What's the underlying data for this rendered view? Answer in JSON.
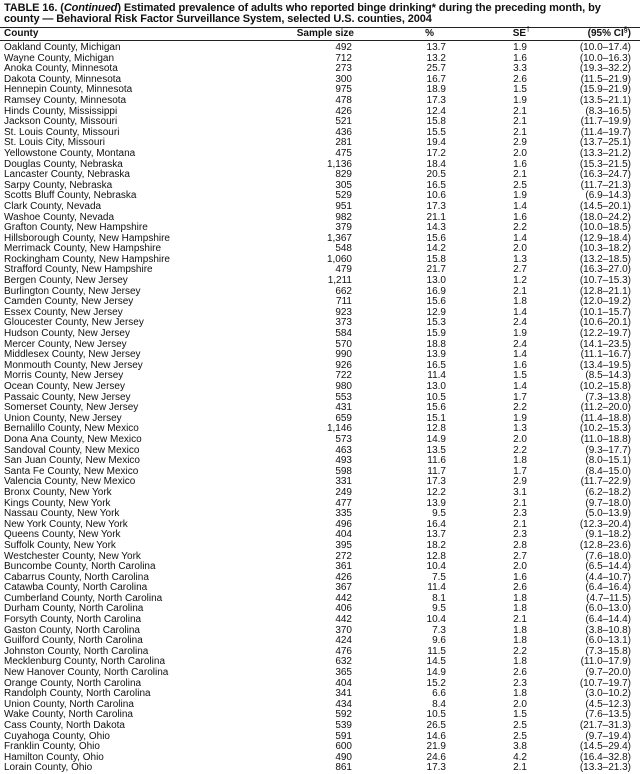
{
  "title": {
    "prefix": "TABLE 16. (",
    "continued": "Continued",
    "rest": ") Estimated prevalence of adults who reported binge drinking* during the preceding month, by county — Behavioral Risk Factor Surveillance System, selected U.S. counties, 2004"
  },
  "columns": {
    "county": "County",
    "sample_size": "Sample size",
    "percent": "%",
    "se": "SE",
    "se_mark": "†",
    "ci": "(95% CI",
    "ci_mark": "§",
    "ci_close": ")"
  },
  "rows": [
    [
      "Oakland County, Michigan",
      "492",
      "13.7",
      "1.9",
      "(10.0–17.4)"
    ],
    [
      "Wayne County, Michigan",
      "712",
      "13.2",
      "1.6",
      "(10.0–16.3)"
    ],
    [
      "Anoka County, Minnesota",
      "273",
      "25.7",
      "3.3",
      "(19.3–32.2)"
    ],
    [
      "Dakota County, Minnesota",
      "300",
      "16.7",
      "2.6",
      "(11.5–21.9)"
    ],
    [
      "Hennepin County, Minnesota",
      "975",
      "18.9",
      "1.5",
      "(15.9–21.9)"
    ],
    [
      "Ramsey County, Minnesota",
      "478",
      "17.3",
      "1.9",
      "(13.5–21.1)"
    ],
    [
      "Hinds County, Mississippi",
      "426",
      "12.4",
      "2.1",
      "(8.3–16.5)"
    ],
    [
      "Jackson County, Missouri",
      "521",
      "15.8",
      "2.1",
      "(11.7–19.9)"
    ],
    [
      "St. Louis County, Missouri",
      "436",
      "15.5",
      "2.1",
      "(11.4–19.7)"
    ],
    [
      "St. Louis City, Missouri",
      "281",
      "19.4",
      "2.9",
      "(13.7–25.1)"
    ],
    [
      "Yellowstone County, Montana",
      "475",
      "17.2",
      "2.0",
      "(13.3–21.2)"
    ],
    [
      "Douglas County, Nebraska",
      "1,136",
      "18.4",
      "1.6",
      "(15.3–21.5)"
    ],
    [
      "Lancaster County, Nebraska",
      "829",
      "20.5",
      "2.1",
      "(16.3–24.7)"
    ],
    [
      "Sarpy County, Nebraska",
      "305",
      "16.5",
      "2.5",
      "(11.7–21.3)"
    ],
    [
      "Scotts Bluff County, Nebraska",
      "529",
      "10.6",
      "1.9",
      "(6.9–14.3)"
    ],
    [
      "Clark County, Nevada",
      "951",
      "17.3",
      "1.4",
      "(14.5–20.1)"
    ],
    [
      "Washoe County, Nevada",
      "982",
      "21.1",
      "1.6",
      "(18.0–24.2)"
    ],
    [
      "Grafton County, New Hampshire",
      "379",
      "14.3",
      "2.2",
      "(10.0–18.5)"
    ],
    [
      "Hillsborough County, New Hampshire",
      "1,367",
      "15.6",
      "1.4",
      "(12.9–18.4)"
    ],
    [
      "Merrimack County, New Hampshire",
      "548",
      "14.2",
      "2.0",
      "(10.3–18.2)"
    ],
    [
      "Rockingham County, New Hampshire",
      "1,060",
      "15.8",
      "1.3",
      "(13.2–18.5)"
    ],
    [
      "Strafford County, New Hampshire",
      "479",
      "21.7",
      "2.7",
      "(16.3–27.0)"
    ],
    [
      "Bergen County, New Jersey",
      "1,211",
      "13.0",
      "1.2",
      "(10.7–15.3)"
    ],
    [
      "Burlington County, New Jersey",
      "662",
      "16.9",
      "2.1",
      "(12.8–21.1)"
    ],
    [
      "Camden County, New Jersey",
      "711",
      "15.6",
      "1.8",
      "(12.0–19.2)"
    ],
    [
      "Essex County, New Jersey",
      "923",
      "12.9",
      "1.4",
      "(10.1–15.7)"
    ],
    [
      "Gloucester County, New Jersey",
      "373",
      "15.3",
      "2.4",
      "(10.6–20.1)"
    ],
    [
      "Hudson County, New Jersey",
      "584",
      "15.9",
      "1.9",
      "(12.2–19.7)"
    ],
    [
      "Mercer County, New Jersey",
      "570",
      "18.8",
      "2.4",
      "(14.1–23.5)"
    ],
    [
      "Middlesex County, New Jersey",
      "990",
      "13.9",
      "1.4",
      "(11.1–16.7)"
    ],
    [
      "Monmouth County, New Jersey",
      "926",
      "16.5",
      "1.6",
      "(13.4–19.5)"
    ],
    [
      "Morris County, New Jersey",
      "722",
      "11.4",
      "1.5",
      "(8.5–14.3)"
    ],
    [
      "Ocean County, New Jersey",
      "980",
      "13.0",
      "1.4",
      "(10.2–15.8)"
    ],
    [
      "Passaic County, New Jersey",
      "553",
      "10.5",
      "1.7",
      "(7.3–13.8)"
    ],
    [
      "Somerset County, New Jersey",
      "431",
      "15.6",
      "2.2",
      "(11.2–20.0)"
    ],
    [
      "Union County, New Jersey",
      "659",
      "15.1",
      "1.9",
      "(11.4–18.8)"
    ],
    [
      "Bernalillo County, New Mexico",
      "1,146",
      "12.8",
      "1.3",
      "(10.2–15.3)"
    ],
    [
      "Dona Ana County, New Mexico",
      "573",
      "14.9",
      "2.0",
      "(11.0–18.8)"
    ],
    [
      "Sandoval County, New Mexico",
      "463",
      "13.5",
      "2.2",
      "(9.3–17.7)"
    ],
    [
      "San Juan County, New Mexico",
      "493",
      "11.6",
      "1.8",
      "(8.0–15.1)"
    ],
    [
      "Santa Fe County, New Mexico",
      "598",
      "11.7",
      "1.7",
      "(8.4–15.0)"
    ],
    [
      "Valencia County, New Mexico",
      "331",
      "17.3",
      "2.9",
      "(11.7–22.9)"
    ],
    [
      "Bronx County, New York",
      "249",
      "12.2",
      "3.1",
      "(6.2–18.2)"
    ],
    [
      "Kings County, New York",
      "477",
      "13.9",
      "2.1",
      "(9.7–18.0)"
    ],
    [
      "Nassau County, New York",
      "335",
      "9.5",
      "2.3",
      "(5.0–13.9)"
    ],
    [
      "New York County, New York",
      "496",
      "16.4",
      "2.1",
      "(12.3–20.4)"
    ],
    [
      "Queens County, New York",
      "404",
      "13.7",
      "2.3",
      "(9.1–18.2)"
    ],
    [
      "Suffolk County, New York",
      "395",
      "18.2",
      "2.8",
      "(12.8–23.6)"
    ],
    [
      "Westchester County, New York",
      "272",
      "12.8",
      "2.7",
      "(7.6–18.0)"
    ],
    [
      "Buncombe County, North Carolina",
      "361",
      "10.4",
      "2.0",
      "(6.5–14.4)"
    ],
    [
      "Cabarrus County, North Carolina",
      "426",
      "7.5",
      "1.6",
      "(4.4–10.7)"
    ],
    [
      "Catawba County, North Carolina",
      "367",
      "11.4",
      "2.6",
      "(6.4–16.4)"
    ],
    [
      "Cumberland County, North Carolina",
      "442",
      "8.1",
      "1.8",
      "(4.7–11.5)"
    ],
    [
      "Durham County, North Carolina",
      "406",
      "9.5",
      "1.8",
      "(6.0–13.0)"
    ],
    [
      "Forsyth County, North Carolina",
      "442",
      "10.4",
      "2.1",
      "(6.4–14.4)"
    ],
    [
      "Gaston County, North Carolina",
      "370",
      "7.3",
      "1.8",
      "(3.8–10.8)"
    ],
    [
      "Guilford County, North Carolina",
      "424",
      "9.6",
      "1.8",
      "(6.0–13.1)"
    ],
    [
      "Johnston County, North Carolina",
      "476",
      "11.5",
      "2.2",
      "(7.3–15.8)"
    ],
    [
      "Mecklenburg County, North Carolina",
      "632",
      "14.5",
      "1.8",
      "(11.0–17.9)"
    ],
    [
      "New Hanover County, North Carolina",
      "365",
      "14.9",
      "2.6",
      "(9.7–20.0)"
    ],
    [
      "Orange County, North Carolina",
      "404",
      "15.2",
      "2.3",
      "(10.7–19.7)"
    ],
    [
      "Randolph County, North Carolina",
      "341",
      "6.6",
      "1.8",
      "(3.0–10.2)"
    ],
    [
      "Union County, North Carolina",
      "434",
      "8.4",
      "2.0",
      "(4.5–12.3)"
    ],
    [
      "Wake County, North Carolina",
      "592",
      "10.5",
      "1.5",
      "(7.6–13.5)"
    ],
    [
      "Cass County, North Dakota",
      "539",
      "26.5",
      "2.5",
      "(21.7–31.3)"
    ],
    [
      "Cuyahoga County, Ohio",
      "591",
      "14.6",
      "2.5",
      "(9.7–19.4)"
    ],
    [
      "Franklin County, Ohio",
      "600",
      "21.9",
      "3.8",
      "(14.5–29.4)"
    ],
    [
      "Hamilton County, Ohio",
      "490",
      "24.6",
      "4.2",
      "(16.4–32.8)"
    ],
    [
      "Lorain County, Ohio",
      "861",
      "17.3",
      "2.1",
      "(13.3–21.3)"
    ]
  ]
}
